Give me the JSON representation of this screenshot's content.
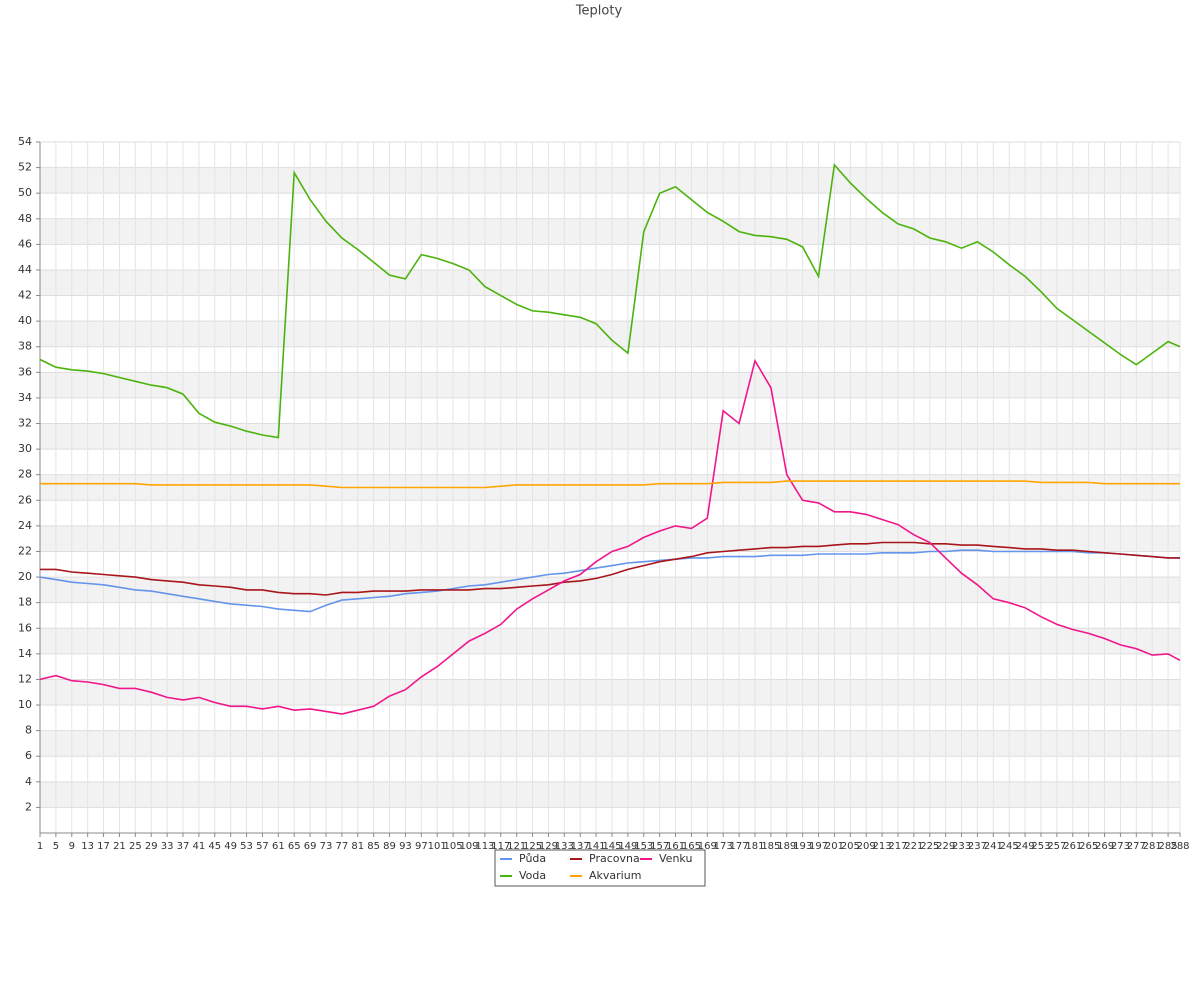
{
  "chart_data": {
    "type": "line",
    "title": "Teploty",
    "x": [
      1,
      5,
      9,
      13,
      17,
      21,
      25,
      29,
      33,
      37,
      41,
      45,
      49,
      53,
      57,
      61,
      65,
      69,
      73,
      77,
      81,
      85,
      89,
      93,
      97,
      101,
      105,
      109,
      113,
      117,
      121,
      125,
      129,
      133,
      137,
      141,
      145,
      149,
      153,
      157,
      161,
      165,
      169,
      173,
      177,
      181,
      185,
      189,
      193,
      197,
      201,
      205,
      209,
      213,
      217,
      221,
      225,
      229,
      233,
      237,
      241,
      245,
      249,
      253,
      257,
      261,
      265,
      269,
      273,
      277,
      281,
      285,
      288
    ],
    "xlim": [
      1,
      288
    ],
    "ylim": [
      0,
      54
    ],
    "yticks": [
      2,
      4,
      6,
      8,
      10,
      12,
      14,
      16,
      18,
      20,
      22,
      24,
      26,
      28,
      30,
      32,
      34,
      36,
      38,
      40,
      42,
      44,
      46,
      48,
      50,
      52,
      54
    ],
    "grid": true,
    "series": [
      {
        "name": "Půda",
        "color": "#6495ed",
        "values": [
          20.0,
          19.8,
          19.6,
          19.5,
          19.4,
          19.2,
          19.0,
          18.9,
          18.7,
          18.5,
          18.3,
          18.1,
          17.9,
          17.8,
          17.7,
          17.5,
          17.4,
          17.3,
          17.8,
          18.2,
          18.3,
          18.4,
          18.5,
          18.7,
          18.8,
          18.9,
          19.1,
          19.3,
          19.4,
          19.6,
          19.8,
          20.0,
          20.2,
          20.3,
          20.5,
          20.7,
          20.9,
          21.1,
          21.2,
          21.3,
          21.4,
          21.5,
          21.5,
          21.6,
          21.6,
          21.6,
          21.7,
          21.7,
          21.7,
          21.8,
          21.8,
          21.8,
          21.8,
          21.9,
          21.9,
          21.9,
          22.0,
          22.0,
          22.1,
          22.1,
          22.0,
          22.0,
          22.0,
          22.0,
          22.0,
          22.0,
          21.9,
          21.9,
          21.8,
          21.7,
          21.6,
          21.5,
          21.5
        ]
      },
      {
        "name": "Pracovna",
        "color": "#a8161c",
        "values": [
          20.6,
          20.6,
          20.4,
          20.3,
          20.2,
          20.1,
          20.0,
          19.8,
          19.7,
          19.6,
          19.4,
          19.3,
          19.2,
          19.0,
          19.0,
          18.8,
          18.7,
          18.7,
          18.6,
          18.8,
          18.8,
          18.9,
          18.9,
          18.9,
          19.0,
          19.0,
          19.0,
          19.0,
          19.1,
          19.1,
          19.2,
          19.3,
          19.4,
          19.6,
          19.7,
          19.9,
          20.2,
          20.6,
          20.9,
          21.2,
          21.4,
          21.6,
          21.9,
          22.0,
          22.1,
          22.2,
          22.3,
          22.3,
          22.4,
          22.4,
          22.5,
          22.6,
          22.6,
          22.7,
          22.7,
          22.7,
          22.6,
          22.6,
          22.5,
          22.5,
          22.4,
          22.3,
          22.2,
          22.2,
          22.1,
          22.1,
          22.0,
          21.9,
          21.8,
          21.7,
          21.6,
          21.5,
          21.5
        ]
      },
      {
        "name": "Venku",
        "color": "#f0168c",
        "values": [
          12.0,
          12.3,
          11.9,
          11.8,
          11.6,
          11.3,
          11.3,
          11.0,
          10.6,
          10.4,
          10.6,
          10.2,
          9.9,
          9.9,
          9.7,
          9.9,
          9.6,
          9.7,
          9.5,
          9.3,
          9.6,
          9.9,
          10.7,
          11.2,
          12.2,
          13.0,
          14.0,
          15.0,
          15.6,
          16.3,
          17.5,
          18.3,
          19.0,
          19.7,
          20.2,
          21.2,
          22.0,
          22.4,
          23.1,
          23.6,
          24.0,
          23.8,
          24.6,
          33.0,
          32.0,
          36.9,
          34.8,
          28.0,
          26.0,
          25.8,
          25.1,
          25.1,
          24.9,
          24.5,
          24.1,
          23.3,
          22.7,
          21.5,
          20.3,
          19.4,
          18.3,
          18.0,
          17.6,
          16.9,
          16.3,
          15.9,
          15.6,
          15.2,
          14.7,
          14.4,
          13.9,
          14.0,
          13.5
        ]
      },
      {
        "name": "Voda",
        "color": "#4cb30c",
        "values": [
          37.0,
          36.4,
          36.2,
          36.1,
          35.9,
          35.6,
          35.3,
          35.0,
          34.8,
          34.3,
          32.8,
          32.1,
          31.8,
          31.4,
          31.1,
          30.9,
          51.6,
          49.5,
          47.8,
          46.5,
          45.6,
          44.6,
          43.6,
          43.3,
          45.2,
          44.9,
          44.5,
          44.0,
          42.7,
          42.0,
          41.3,
          40.8,
          40.7,
          40.5,
          40.3,
          39.8,
          38.5,
          37.5,
          47.0,
          50.0,
          50.5,
          49.5,
          48.5,
          47.8,
          47.0,
          46.7,
          46.6,
          46.4,
          45.8,
          43.5,
          52.2,
          50.8,
          49.6,
          48.5,
          47.6,
          47.2,
          46.5,
          46.2,
          45.7,
          46.2,
          45.4,
          44.4,
          43.5,
          42.3,
          41.0,
          40.1,
          39.2,
          38.3,
          37.4,
          36.6,
          37.5,
          38.4,
          38.0
        ]
      },
      {
        "name": "Akvarium",
        "color": "#ffa500",
        "values": [
          27.3,
          27.3,
          27.3,
          27.3,
          27.3,
          27.3,
          27.3,
          27.2,
          27.2,
          27.2,
          27.2,
          27.2,
          27.2,
          27.2,
          27.2,
          27.2,
          27.2,
          27.2,
          27.1,
          27.0,
          27.0,
          27.0,
          27.0,
          27.0,
          27.0,
          27.0,
          27.0,
          27.0,
          27.0,
          27.1,
          27.2,
          27.2,
          27.2,
          27.2,
          27.2,
          27.2,
          27.2,
          27.2,
          27.2,
          27.3,
          27.3,
          27.3,
          27.3,
          27.4,
          27.4,
          27.4,
          27.4,
          27.5,
          27.5,
          27.5,
          27.5,
          27.5,
          27.5,
          27.5,
          27.5,
          27.5,
          27.5,
          27.5,
          27.5,
          27.5,
          27.5,
          27.5,
          27.5,
          27.4,
          27.4,
          27.4,
          27.4,
          27.3,
          27.3,
          27.3,
          27.3,
          27.3,
          27.3
        ]
      }
    ]
  }
}
